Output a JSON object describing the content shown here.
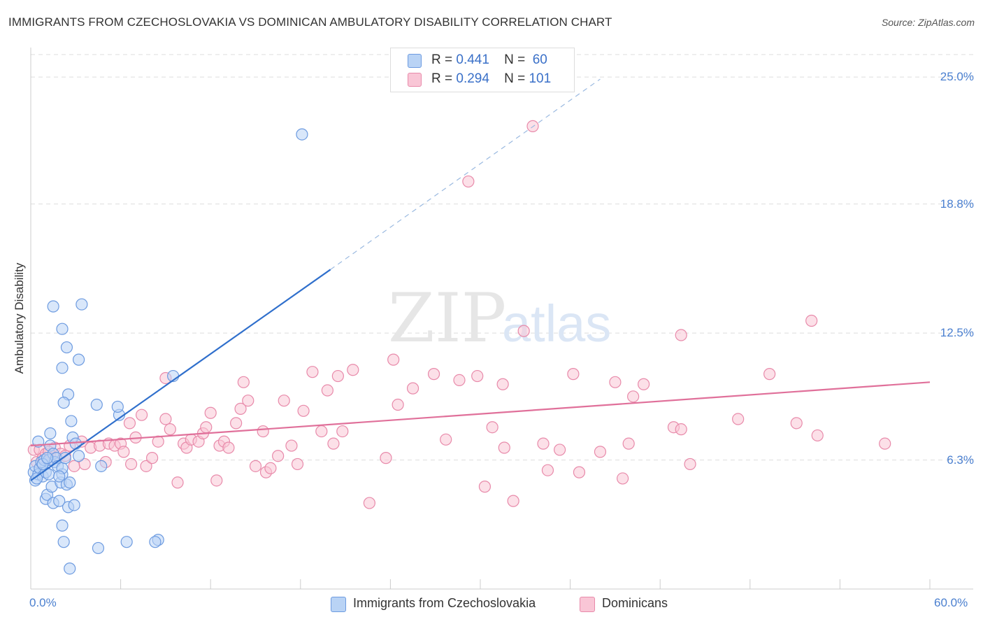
{
  "title": "IMMIGRANTS FROM CZECHOSLOVAKIA VS DOMINICAN AMBULATORY DISABILITY CORRELATION CHART",
  "source": "Source: ZipAtlas.com",
  "watermark": {
    "zip": "ZIP",
    "atlas": "atlas"
  },
  "legend": {
    "r_label": "R =",
    "n_label": "N =",
    "rows": [
      {
        "r": "0.441",
        "n": "60",
        "fill": "#b9d3f5",
        "stroke": "#6d9be0"
      },
      {
        "r": "0.294",
        "n": "101",
        "fill": "#f9c6d6",
        "stroke": "#e88aaa"
      }
    ]
  },
  "bottom_legend": [
    {
      "label": "Immigrants from Czechoslovakia",
      "fill": "#b9d3f5",
      "stroke": "#6d9be0"
    },
    {
      "label": "Dominicans",
      "fill": "#f9c6d6",
      "stroke": "#e88aaa"
    }
  ],
  "chart_data": {
    "type": "scatter",
    "ylabel": "Ambulatory Disability",
    "xlim": [
      0,
      60
    ],
    "ylim": [
      0,
      26.2
    ],
    "x_tick_labels": [
      "0.0%",
      "60.0%"
    ],
    "y_ticks": [
      {
        "value": 6.3,
        "label": "6.3%"
      },
      {
        "value": 12.5,
        "label": "12.5%"
      },
      {
        "value": 18.8,
        "label": "18.8%"
      },
      {
        "value": 25.0,
        "label": "25.0%"
      }
    ],
    "grid": "horizontal-dashed",
    "series": [
      {
        "name": "Immigrants from Czechoslovakia",
        "color": "#6d9be0",
        "fill": "#b9d3f5",
        "trend_color": "#2f6fcc",
        "trend": {
          "x0": 0,
          "y0": 5.3,
          "x1": 20,
          "y1": 15.6,
          "dash_x1": 38,
          "dash_y1": 24.9
        },
        "points": [
          [
            0.2,
            5.7
          ],
          [
            0.3,
            6.0
          ],
          [
            0.3,
            5.3
          ],
          [
            0.5,
            5.6
          ],
          [
            0.5,
            7.2
          ],
          [
            0.6,
            5.9
          ],
          [
            0.7,
            6.2
          ],
          [
            0.8,
            5.5
          ],
          [
            0.9,
            6.3
          ],
          [
            1.0,
            5.7
          ],
          [
            1.0,
            4.4
          ],
          [
            1.1,
            4.6
          ],
          [
            1.2,
            6.3
          ],
          [
            1.2,
            5.6
          ],
          [
            1.3,
            7.0
          ],
          [
            1.3,
            7.6
          ],
          [
            1.4,
            5.0
          ],
          [
            1.5,
            6.6
          ],
          [
            1.5,
            4.2
          ],
          [
            1.6,
            6.2
          ],
          [
            1.7,
            6.4
          ],
          [
            1.8,
            6.0
          ],
          [
            1.9,
            4.3
          ],
          [
            2.0,
            5.2
          ],
          [
            2.1,
            5.6
          ],
          [
            2.1,
            5.9
          ],
          [
            2.2,
            2.3
          ],
          [
            2.3,
            6.4
          ],
          [
            2.4,
            5.1
          ],
          [
            2.5,
            4.0
          ],
          [
            2.6,
            5.2
          ],
          [
            2.7,
            8.2
          ],
          [
            2.8,
            7.4
          ],
          [
            2.9,
            4.1
          ],
          [
            3.0,
            7.1
          ],
          [
            1.5,
            13.8
          ],
          [
            2.1,
            12.7
          ],
          [
            2.4,
            11.8
          ],
          [
            2.1,
            10.8
          ],
          [
            3.2,
            11.2
          ],
          [
            2.5,
            9.5
          ],
          [
            2.2,
            9.1
          ],
          [
            3.4,
            13.9
          ],
          [
            4.4,
            9.0
          ],
          [
            5.9,
            8.5
          ],
          [
            5.8,
            8.9
          ],
          [
            4.7,
            6.0
          ],
          [
            4.5,
            2.0
          ],
          [
            6.4,
            2.3
          ],
          [
            8.5,
            2.4
          ],
          [
            8.3,
            2.3
          ],
          [
            2.6,
            1.0
          ],
          [
            2.1,
            3.1
          ],
          [
            9.5,
            10.4
          ],
          [
            18.1,
            22.2
          ],
          [
            0.4,
            5.4
          ],
          [
            0.8,
            6.1
          ],
          [
            1.9,
            5.5
          ],
          [
            3.2,
            6.5
          ],
          [
            1.1,
            6.4
          ]
        ]
      },
      {
        "name": "Dominicans",
        "color": "#e88aaa",
        "fill": "#f9c6d6",
        "trend_color": "#e0709a",
        "trend": {
          "x0": 0,
          "y0": 7.0,
          "x1": 60,
          "y1": 10.1
        },
        "points": [
          [
            0.2,
            6.8
          ],
          [
            0.4,
            6.2
          ],
          [
            0.6,
            6.8
          ],
          [
            0.8,
            6.4
          ],
          [
            1.0,
            6.6
          ],
          [
            1.3,
            6.3
          ],
          [
            1.6,
            6.9
          ],
          [
            2.0,
            6.6
          ],
          [
            2.3,
            6.5
          ],
          [
            2.6,
            7.0
          ],
          [
            2.9,
            6.0
          ],
          [
            3.4,
            7.2
          ],
          [
            3.6,
            6.1
          ],
          [
            4.0,
            6.9
          ],
          [
            4.6,
            7.0
          ],
          [
            5.0,
            6.2
          ],
          [
            5.2,
            7.1
          ],
          [
            5.6,
            7.0
          ],
          [
            6.0,
            7.1
          ],
          [
            6.2,
            6.7
          ],
          [
            6.6,
            8.1
          ],
          [
            6.7,
            6.1
          ],
          [
            7.0,
            7.4
          ],
          [
            7.4,
            8.5
          ],
          [
            7.7,
            6.0
          ],
          [
            8.1,
            6.4
          ],
          [
            8.5,
            7.2
          ],
          [
            9.0,
            8.3
          ],
          [
            9.0,
            10.3
          ],
          [
            9.3,
            7.8
          ],
          [
            9.8,
            5.2
          ],
          [
            10.2,
            7.1
          ],
          [
            10.4,
            6.9
          ],
          [
            10.7,
            7.3
          ],
          [
            11.2,
            7.2
          ],
          [
            11.5,
            7.6
          ],
          [
            11.7,
            7.9
          ],
          [
            12.0,
            8.6
          ],
          [
            12.4,
            5.3
          ],
          [
            12.6,
            7.0
          ],
          [
            12.9,
            7.2
          ],
          [
            13.2,
            6.9
          ],
          [
            13.7,
            8.1
          ],
          [
            14.0,
            8.8
          ],
          [
            14.5,
            9.2
          ],
          [
            14.2,
            10.1
          ],
          [
            15.0,
            6.0
          ],
          [
            15.5,
            7.7
          ],
          [
            15.7,
            5.7
          ],
          [
            16.0,
            5.9
          ],
          [
            16.5,
            6.5
          ],
          [
            16.9,
            9.2
          ],
          [
            17.4,
            7.0
          ],
          [
            17.8,
            6.1
          ],
          [
            18.2,
            8.7
          ],
          [
            18.8,
            10.6
          ],
          [
            19.4,
            7.7
          ],
          [
            19.8,
            9.7
          ],
          [
            20.2,
            7.1
          ],
          [
            20.5,
            10.4
          ],
          [
            20.8,
            7.7
          ],
          [
            21.5,
            10.7
          ],
          [
            22.6,
            4.2
          ],
          [
            23.7,
            6.4
          ],
          [
            24.2,
            11.2
          ],
          [
            24.5,
            9.0
          ],
          [
            25.5,
            9.8
          ],
          [
            26.9,
            10.5
          ],
          [
            27.7,
            7.3
          ],
          [
            28.6,
            10.2
          ],
          [
            29.2,
            19.9
          ],
          [
            29.8,
            10.4
          ],
          [
            30.3,
            5.0
          ],
          [
            30.8,
            7.9
          ],
          [
            31.5,
            10.0
          ],
          [
            31.6,
            6.9
          ],
          [
            32.2,
            4.3
          ],
          [
            32.9,
            12.6
          ],
          [
            33.5,
            22.6
          ],
          [
            34.2,
            7.1
          ],
          [
            34.5,
            5.8
          ],
          [
            35.3,
            6.8
          ],
          [
            36.2,
            10.5
          ],
          [
            36.6,
            5.7
          ],
          [
            38.0,
            6.7
          ],
          [
            39.0,
            10.1
          ],
          [
            39.5,
            5.4
          ],
          [
            39.9,
            7.1
          ],
          [
            40.2,
            9.4
          ],
          [
            40.9,
            10.0
          ],
          [
            42.9,
            7.9
          ],
          [
            43.4,
            12.4
          ],
          [
            43.4,
            7.8
          ],
          [
            44.0,
            6.1
          ],
          [
            47.2,
            8.3
          ],
          [
            49.3,
            10.5
          ],
          [
            51.1,
            8.1
          ],
          [
            52.1,
            13.1
          ],
          [
            52.5,
            7.5
          ],
          [
            57.0,
            7.1
          ],
          [
            1.2,
            6.7
          ]
        ]
      }
    ]
  }
}
